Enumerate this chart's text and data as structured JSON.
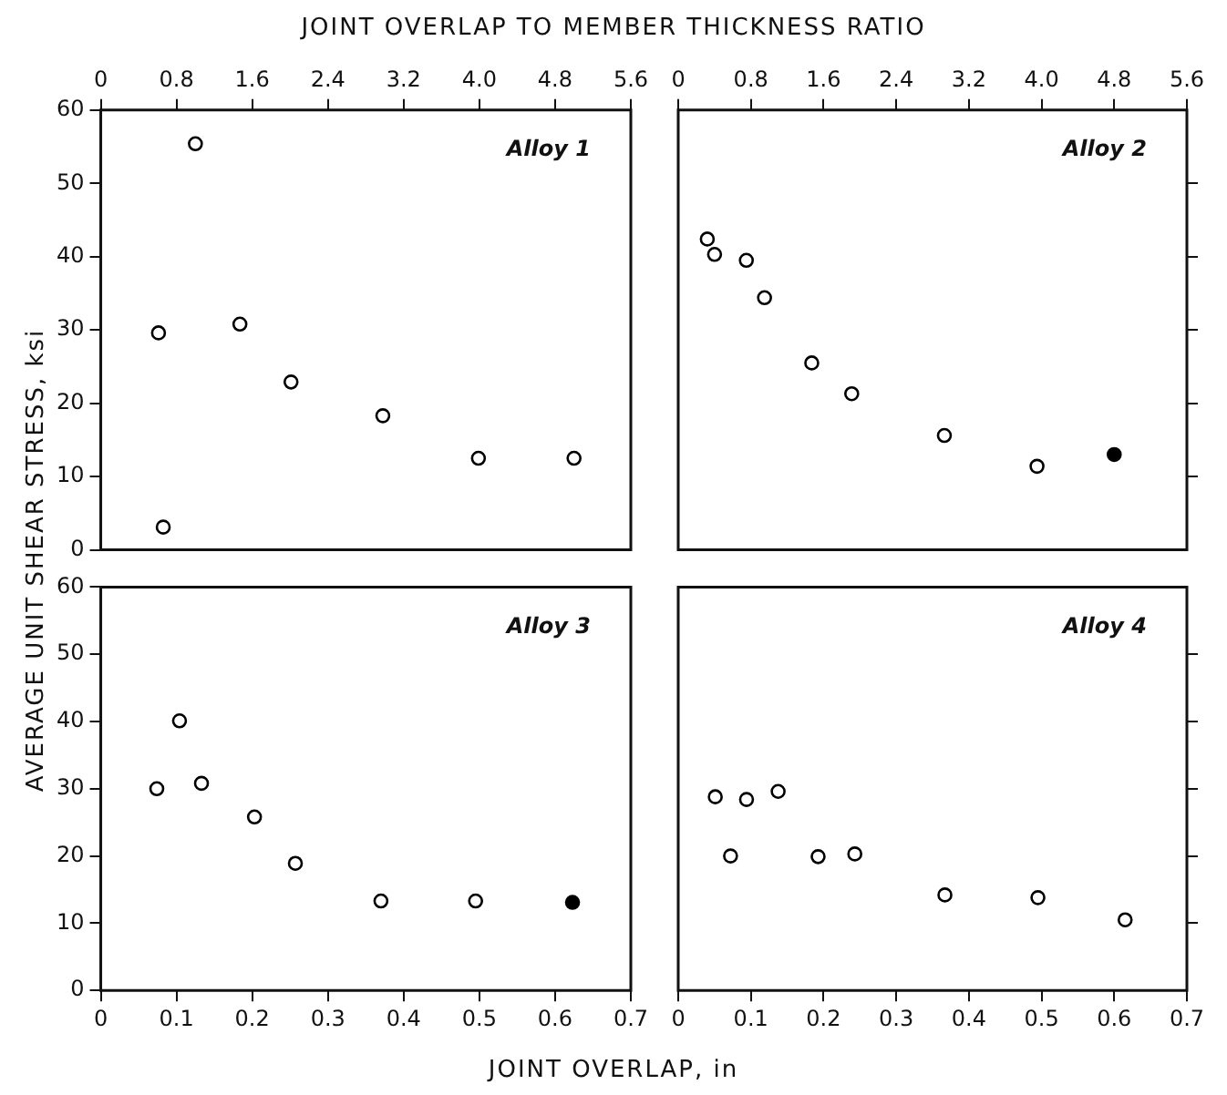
{
  "chart_data": [
    {
      "type": "scatter",
      "x2label": "JOINT OVERLAP TO MEMBER THICKNESS RATIO",
      "ylabel": "AVERAGE UNIT SHEAR STRESS,     ksi",
      "annotations": [
        "Alloy 1"
      ],
      "xlim": [
        0,
        5.6
      ],
      "xticks": [
        0,
        0.8,
        1.6,
        2.4,
        3.2,
        {
          "value": 4,
          "label": "4.0"
        },
        4.8,
        5.6
      ],
      "ylim": [
        0,
        60
      ],
      "yticks": [
        0,
        10,
        20,
        30,
        40,
        50,
        60
      ],
      "grid": false,
      "legend": false,
      "marker": "circle",
      "series": [
        {
          "color": "#000000",
          "x": [
            0.61,
            1.0,
            0.66,
            1.47,
            2.01,
            2.98,
            3.99,
            5.0
          ],
          "values": [
            29.6,
            55.4,
            3.1,
            30.8,
            22.9,
            18.3,
            12.5,
            12.5
          ]
        }
      ]
    },
    {
      "type": "scatter",
      "annotations": [
        "Alloy 2"
      ],
      "xlim": [
        0,
        5.6
      ],
      "xticks": [
        0,
        0.8,
        1.6,
        2.4,
        3.2,
        {
          "value": 4,
          "label": "4.0"
        },
        4.8,
        5.6
      ],
      "ylim": [
        0,
        60
      ],
      "yticks": [
        {
          "value": 10,
          "label": null
        },
        {
          "value": 20,
          "label": null
        },
        {
          "value": 30,
          "label": null
        },
        {
          "value": 40,
          "label": null
        },
        {
          "value": 50,
          "label": null
        }
      ],
      "tick_labels": "x",
      "grid": false,
      "legend": false,
      "marker": "circle",
      "series": [
        {
          "color": "#000000",
          "x": [
            0.32,
            0.4,
            0.75,
            0.95,
            1.47,
            1.91,
            2.93,
            3.95
          ],
          "values": [
            42.4,
            40.3,
            39.5,
            34.4,
            25.5,
            21.3,
            15.6,
            11.4
          ]
        },
        {
          "color": "#000000",
          "x": [
            4.8
          ],
          "values": [
            13.0
          ]
        }
      ]
    },
    {
      "type": "scatter",
      "xlabel": "JOINT OVERLAP, in",
      "annotations": [
        "Alloy 3"
      ],
      "xlim": [
        0,
        0.7
      ],
      "xticks": [
        0,
        0.1,
        0.2,
        0.3,
        0.4,
        0.5,
        0.6,
        0.7
      ],
      "ylim": [
        0,
        60
      ],
      "yticks": [
        0,
        10,
        20,
        30,
        40,
        50,
        60
      ],
      "grid": false,
      "legend": false,
      "marker": "circle",
      "series": [
        {
          "color": "#000000",
          "x": [
            0.074,
            0.104,
            0.133,
            0.203,
            0.257,
            0.37,
            0.495
          ],
          "values": [
            30.0,
            40.1,
            30.8,
            25.8,
            18.9,
            13.3,
            13.3
          ]
        },
        {
          "color": "#000000",
          "x": [
            0.623
          ],
          "values": [
            13.1
          ]
        }
      ]
    },
    {
      "type": "scatter",
      "annotations": [
        "Alloy 4"
      ],
      "xlim": [
        0,
        0.7
      ],
      "xticks": [
        0,
        0.1,
        0.2,
        0.3,
        0.4,
        0.5,
        0.6,
        0.7
      ],
      "ylim": [
        0,
        60
      ],
      "yticks": [
        {
          "value": 10,
          "label": null
        },
        {
          "value": 20,
          "label": null
        },
        {
          "value": 30,
          "label": null
        },
        {
          "value": 40,
          "label": null
        },
        {
          "value": 50,
          "label": null
        }
      ],
      "tick_labels": "x",
      "grid": false,
      "legend": false,
      "marker": "circle",
      "series": [
        {
          "color": "#000000",
          "x": [
            0.051,
            0.072,
            0.094,
            0.1375,
            0.1925,
            0.243,
            0.367,
            0.495,
            0.615
          ],
          "values": [
            28.8,
            20.0,
            28.4,
            29.6,
            19.9,
            20.3,
            14.2,
            13.8,
            10.5
          ]
        }
      ]
    }
  ]
}
